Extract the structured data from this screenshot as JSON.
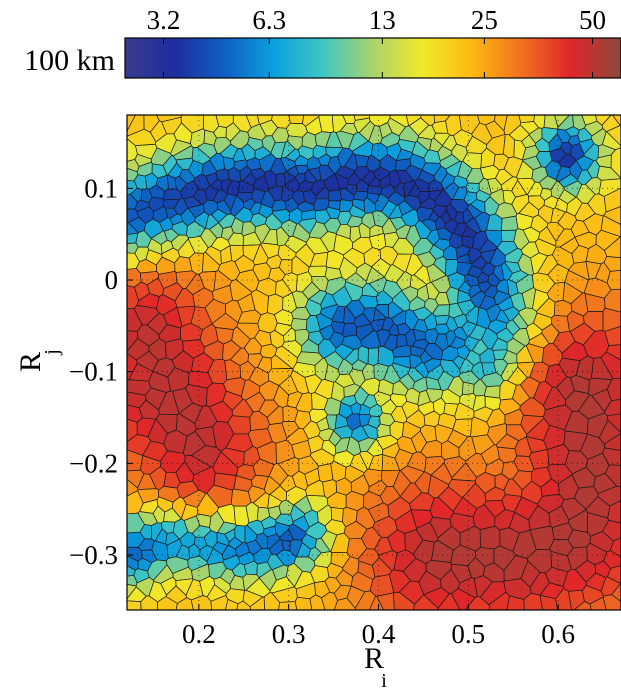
{
  "chart_data": {
    "type": "heatmap",
    "title": "",
    "colorbar": {
      "label": "100 km",
      "scale": "log",
      "range": [
        2.5,
        60
      ],
      "tick_values": [
        3.2,
        6.3,
        13,
        25,
        50
      ],
      "tick_labels": [
        "3.2",
        "6.3",
        "13",
        "25",
        "50"
      ],
      "colors": [
        "#3a3b8e",
        "#1e2e9e",
        "#0f5fc2",
        "#0aa0de",
        "#3fc7c3",
        "#a9d36b",
        "#f0e92a",
        "#fdb813",
        "#f0701f",
        "#e0262a",
        "#8a4a3c"
      ]
    },
    "xlabel": "R",
    "xlabel_sub": "i",
    "ylabel": "R",
    "ylabel_sub": "j",
    "xlim": [
      0.12,
      0.67
    ],
    "ylim": [
      -0.36,
      0.18
    ],
    "x_ticks": [
      0.2,
      0.3,
      0.4,
      0.5,
      0.6
    ],
    "x_tick_labels": [
      "0.2",
      "0.3",
      "0.4",
      "0.5",
      "0.6"
    ],
    "y_ticks": [
      0.1,
      0,
      -0.1,
      -0.2,
      -0.3
    ],
    "y_tick_labels": [
      "0.1",
      "0",
      "−0.1",
      "−0.2",
      "−0.3"
    ],
    "grid": true,
    "cell_style": "voronoi",
    "features": [
      {
        "shape": "arc",
        "points": [
          [
            0.12,
            0.065
          ],
          [
            0.17,
            0.085
          ],
          [
            0.22,
            0.1
          ],
          [
            0.27,
            0.105
          ],
          [
            0.32,
            0.1
          ],
          [
            0.37,
            0.11
          ],
          [
            0.42,
            0.11
          ],
          [
            0.46,
            0.09
          ],
          [
            0.49,
            0.06
          ],
          [
            0.51,
            0.03
          ],
          [
            0.52,
            0.0
          ],
          [
            0.53,
            -0.03
          ],
          [
            0.54,
            -0.06
          ],
          [
            0.53,
            -0.09
          ]
        ],
        "value": 3.5,
        "width": 0.028
      },
      {
        "shape": "arc",
        "points": [
          [
            0.13,
            -0.295
          ],
          [
            0.16,
            -0.28
          ],
          [
            0.2,
            -0.283
          ],
          [
            0.24,
            -0.29
          ],
          [
            0.28,
            -0.285
          ],
          [
            0.31,
            -0.28
          ]
        ],
        "value": 4.0,
        "width": 0.022
      },
      {
        "shape": "arc",
        "points": [
          [
            0.36,
            -0.05
          ],
          [
            0.4,
            -0.05
          ],
          [
            0.43,
            -0.065
          ],
          [
            0.46,
            -0.075
          ],
          [
            0.49,
            -0.07
          ]
        ],
        "value": 4.5,
        "width": 0.03
      },
      {
        "shape": "blob",
        "points": [
          [
            0.61,
            0.135
          ]
        ],
        "value": 3.5,
        "width": 0.022
      },
      {
        "shape": "blob",
        "points": [
          [
            0.375,
            -0.155
          ]
        ],
        "value": 4.5,
        "width": 0.02
      },
      {
        "shape": "blob",
        "points": [
          [
            0.15,
            -0.12
          ],
          [
            0.2,
            -0.18
          ],
          [
            0.14,
            -0.06
          ]
        ],
        "value": 50,
        "width": 0.06
      },
      {
        "shape": "blob",
        "points": [
          [
            0.47,
            -0.3
          ],
          [
            0.55,
            -0.3
          ],
          [
            0.62,
            -0.28
          ],
          [
            0.64,
            -0.22
          ],
          [
            0.63,
            -0.12
          ]
        ],
        "value": 52,
        "width": 0.07
      }
    ]
  }
}
